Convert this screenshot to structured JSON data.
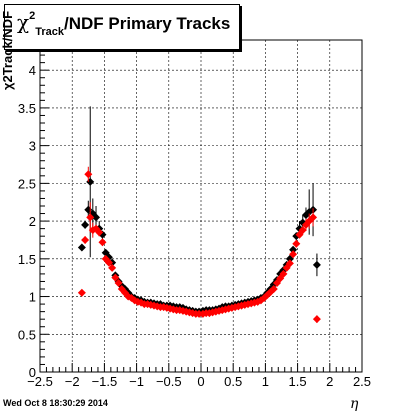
{
  "header": {
    "title_chi": "χ",
    "title_sup": "2",
    "title_sub": "Track",
    "title_rest": "/NDF  Primary Tracks"
  },
  "footer": {
    "datestamp": "Wed Oct  8 18:30:29 2014"
  },
  "colors": {
    "series_black": "#000000",
    "series_red": "#ff0000",
    "grid": "#000000"
  },
  "chart_data": {
    "type": "scatter",
    "title": "χ2Track/NDF  Primary Tracks",
    "xlabel": "η",
    "ylabel": "χ2Track/NDF",
    "xlim": [
      -2.5,
      2.5
    ],
    "ylim": [
      0,
      4.4
    ],
    "xticks": [
      "−2.5",
      "−2",
      "−1.5",
      "−1",
      "−0.5",
      "0",
      "0.5",
      "1",
      "1.5",
      "2",
      "2.5"
    ],
    "yticks": [
      "0",
      "0.5",
      "1",
      "1.5",
      "2",
      "2.5",
      "3",
      "3.5",
      "4"
    ],
    "grid": true,
    "series": [
      {
        "color": "#000000",
        "points": [
          [
            -1.85,
            1.65,
            0.0
          ],
          [
            -1.8,
            1.95,
            0.05
          ],
          [
            -1.75,
            2.15,
            0.12
          ],
          [
            -1.72,
            2.52,
            1.0
          ],
          [
            -1.68,
            2.1,
            0.2
          ],
          [
            -1.63,
            2.05,
            0.15
          ],
          [
            -1.58,
            1.9,
            0.1
          ],
          [
            -1.53,
            1.82,
            0.05
          ],
          [
            -1.48,
            1.58,
            0
          ],
          [
            -1.43,
            1.52,
            0
          ],
          [
            -1.38,
            1.45,
            0
          ],
          [
            -1.33,
            1.28,
            0
          ],
          [
            -1.28,
            1.2,
            0
          ],
          [
            -1.23,
            1.14,
            0
          ],
          [
            -1.18,
            1.1,
            0
          ],
          [
            -1.13,
            1.05,
            0
          ],
          [
            -1.08,
            1.0,
            0
          ],
          [
            -1.03,
            0.98,
            0
          ],
          [
            -0.98,
            0.96,
            0
          ],
          [
            -0.93,
            0.95,
            0
          ],
          [
            -0.88,
            0.93,
            0
          ],
          [
            -0.83,
            0.92,
            0
          ],
          [
            -0.78,
            0.92,
            0
          ],
          [
            -0.73,
            0.91,
            0
          ],
          [
            -0.68,
            0.9,
            0
          ],
          [
            -0.63,
            0.9,
            0
          ],
          [
            -0.58,
            0.88,
            0
          ],
          [
            -0.53,
            0.88,
            0
          ],
          [
            -0.48,
            0.88,
            0
          ],
          [
            -0.43,
            0.87,
            0
          ],
          [
            -0.38,
            0.86,
            0
          ],
          [
            -0.33,
            0.86,
            0
          ],
          [
            -0.28,
            0.85,
            0
          ],
          [
            -0.23,
            0.83,
            0
          ],
          [
            -0.18,
            0.82,
            0
          ],
          [
            -0.13,
            0.81,
            0
          ],
          [
            -0.08,
            0.8,
            0
          ],
          [
            -0.03,
            0.8,
            0
          ],
          [
            0.03,
            0.81,
            0
          ],
          [
            0.08,
            0.82,
            0
          ],
          [
            0.13,
            0.82,
            0
          ],
          [
            0.18,
            0.82,
            0
          ],
          [
            0.23,
            0.83,
            0
          ],
          [
            0.28,
            0.84,
            0
          ],
          [
            0.33,
            0.86,
            0
          ],
          [
            0.38,
            0.87,
            0
          ],
          [
            0.43,
            0.87,
            0
          ],
          [
            0.48,
            0.88,
            0
          ],
          [
            0.53,
            0.89,
            0
          ],
          [
            0.58,
            0.9,
            0
          ],
          [
            0.63,
            0.91,
            0
          ],
          [
            0.68,
            0.92,
            0
          ],
          [
            0.73,
            0.93,
            0
          ],
          [
            0.78,
            0.94,
            0
          ],
          [
            0.83,
            0.95,
            0
          ],
          [
            0.88,
            0.96,
            0
          ],
          [
            0.93,
            0.98,
            0
          ],
          [
            0.98,
            1.0,
            0
          ],
          [
            1.03,
            1.05,
            0
          ],
          [
            1.08,
            1.1,
            0
          ],
          [
            1.13,
            1.16,
            0
          ],
          [
            1.18,
            1.22,
            0
          ],
          [
            1.23,
            1.3,
            0
          ],
          [
            1.28,
            1.35,
            0
          ],
          [
            1.33,
            1.42,
            0
          ],
          [
            1.38,
            1.5,
            0
          ],
          [
            1.43,
            1.62,
            0
          ],
          [
            1.48,
            1.8,
            0.05
          ],
          [
            1.53,
            1.9,
            0.1
          ],
          [
            1.58,
            1.98,
            0.1
          ],
          [
            1.63,
            2.08,
            0.1
          ],
          [
            1.68,
            2.12,
            0.3
          ],
          [
            1.74,
            2.15,
            0.35
          ],
          [
            1.8,
            1.42,
            0.15
          ]
        ]
      },
      {
        "color": "#ff0000",
        "points": [
          [
            -1.85,
            1.05,
            0.0
          ],
          [
            -1.8,
            1.75,
            0.05
          ],
          [
            -1.75,
            2.62,
            0.1
          ],
          [
            -1.72,
            2.05,
            0.2
          ],
          [
            -1.68,
            1.88,
            0.1
          ],
          [
            -1.63,
            1.9,
            0.05
          ],
          [
            -1.58,
            1.85,
            0.05
          ],
          [
            -1.53,
            1.72,
            0.05
          ],
          [
            -1.48,
            1.5,
            0
          ],
          [
            -1.43,
            1.45,
            0
          ],
          [
            -1.38,
            1.38,
            0
          ],
          [
            -1.33,
            1.25,
            0
          ],
          [
            -1.28,
            1.18,
            0
          ],
          [
            -1.23,
            1.1,
            0
          ],
          [
            -1.18,
            1.05,
            0
          ],
          [
            -1.13,
            1.0,
            0
          ],
          [
            -1.08,
            0.98,
            0
          ],
          [
            -1.03,
            0.95,
            0
          ],
          [
            -0.98,
            0.93,
            0
          ],
          [
            -0.93,
            0.92,
            0
          ],
          [
            -0.88,
            0.9,
            0
          ],
          [
            -0.83,
            0.9,
            0
          ],
          [
            -0.78,
            0.89,
            0
          ],
          [
            -0.73,
            0.88,
            0
          ],
          [
            -0.68,
            0.87,
            0
          ],
          [
            -0.63,
            0.86,
            0
          ],
          [
            -0.58,
            0.86,
            0
          ],
          [
            -0.53,
            0.85,
            0
          ],
          [
            -0.48,
            0.84,
            0
          ],
          [
            -0.43,
            0.83,
            0
          ],
          [
            -0.38,
            0.82,
            0
          ],
          [
            -0.33,
            0.82,
            0
          ],
          [
            -0.28,
            0.81,
            0
          ],
          [
            -0.23,
            0.8,
            0
          ],
          [
            -0.18,
            0.79,
            0
          ],
          [
            -0.13,
            0.78,
            0
          ],
          [
            -0.08,
            0.77,
            0
          ],
          [
            -0.03,
            0.77,
            0
          ],
          [
            0.03,
            0.77,
            0
          ],
          [
            0.08,
            0.78,
            0
          ],
          [
            0.13,
            0.78,
            0
          ],
          [
            0.18,
            0.79,
            0
          ],
          [
            0.23,
            0.8,
            0
          ],
          [
            0.28,
            0.81,
            0
          ],
          [
            0.33,
            0.82,
            0
          ],
          [
            0.38,
            0.83,
            0
          ],
          [
            0.43,
            0.84,
            0
          ],
          [
            0.48,
            0.85,
            0
          ],
          [
            0.53,
            0.86,
            0
          ],
          [
            0.58,
            0.87,
            0
          ],
          [
            0.63,
            0.88,
            0
          ],
          [
            0.68,
            0.89,
            0
          ],
          [
            0.73,
            0.9,
            0
          ],
          [
            0.78,
            0.91,
            0
          ],
          [
            0.83,
            0.92,
            0
          ],
          [
            0.88,
            0.93,
            0
          ],
          [
            0.93,
            0.95,
            0
          ],
          [
            0.98,
            0.98,
            0
          ],
          [
            1.03,
            1.02,
            0
          ],
          [
            1.08,
            1.06,
            0
          ],
          [
            1.13,
            1.1,
            0
          ],
          [
            1.18,
            1.18,
            0
          ],
          [
            1.23,
            1.24,
            0
          ],
          [
            1.28,
            1.3,
            0
          ],
          [
            1.33,
            1.38,
            0
          ],
          [
            1.38,
            1.44,
            0
          ],
          [
            1.43,
            1.56,
            0
          ],
          [
            1.48,
            1.7,
            0.05
          ],
          [
            1.53,
            1.82,
            0.05
          ],
          [
            1.58,
            1.88,
            0.05
          ],
          [
            1.63,
            1.95,
            0.08
          ],
          [
            1.68,
            2.0,
            0.1
          ],
          [
            1.74,
            2.05,
            0.12
          ],
          [
            1.8,
            0.7,
            0.05
          ]
        ]
      }
    ]
  }
}
